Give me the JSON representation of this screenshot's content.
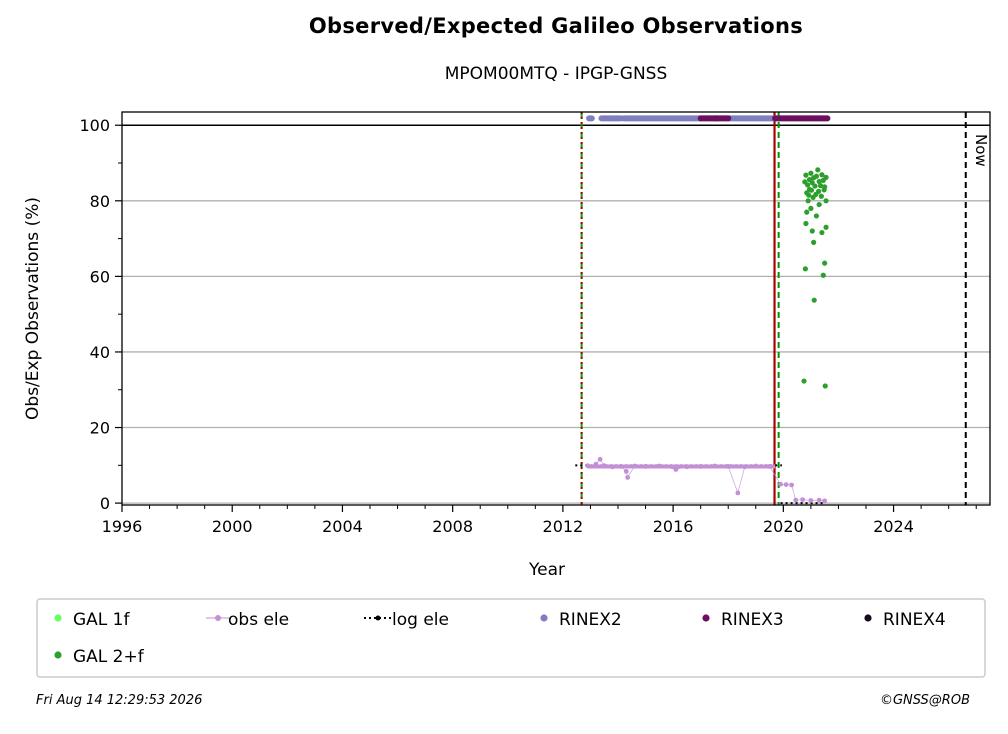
{
  "chart_data": {
    "type": "scatter",
    "title": "Observed/Expected Galileo Observations",
    "subtitle": "MPOM00MTQ - IPGP-GNSS",
    "xlabel": "Year",
    "ylabel": "Obs/Exp Observations (%)",
    "xlim": [
      1996,
      2027.5
    ],
    "ylim": [
      -0.5,
      103.5
    ],
    "xticks": [
      1996,
      2000,
      2004,
      2008,
      2012,
      2016,
      2020,
      2024
    ],
    "yticks": [
      0,
      20,
      40,
      60,
      80,
      100
    ],
    "grid": "y",
    "legend_location": "bottom",
    "vlines": [
      {
        "x": 2012.68,
        "color": "#00aa00",
        "style": "dashed"
      },
      {
        "x": 2012.68,
        "color": "#aa0000",
        "style": "dotted"
      },
      {
        "x": 2019.68,
        "color": "#aa0000",
        "style": "solid"
      },
      {
        "x": 2019.83,
        "color": "#009900",
        "style": "dashed"
      },
      {
        "x": 2026.62,
        "color": "#000000",
        "style": "dashed",
        "label": "Now"
      }
    ],
    "hline": 100,
    "series": [
      {
        "name": "GAL 1f",
        "color": "#66ff66",
        "points": []
      },
      {
        "name": "obs ele",
        "color": "#c38fd6",
        "points": [
          [
            2012.9,
            9.9
          ],
          [
            2013.2,
            10.3
          ],
          [
            2013.35,
            11.6
          ],
          [
            2013.5,
            9.9
          ],
          [
            2013.8,
            9.6
          ],
          [
            2014.1,
            9.7
          ],
          [
            2014.3,
            8.4
          ],
          [
            2014.35,
            6.8
          ],
          [
            2014.6,
            9.8
          ],
          [
            2015.0,
            9.7
          ],
          [
            2015.5,
            9.8
          ],
          [
            2016.1,
            8.9
          ],
          [
            2016.5,
            9.6
          ],
          [
            2017.0,
            9.7
          ],
          [
            2017.5,
            9.8
          ],
          [
            2018.0,
            9.7
          ],
          [
            2018.35,
            2.7
          ],
          [
            2018.6,
            9.6
          ],
          [
            2019.0,
            9.8
          ],
          [
            2019.5,
            9.7
          ],
          [
            2019.9,
            5.0
          ],
          [
            2020.1,
            4.9
          ],
          [
            2020.3,
            4.8
          ],
          [
            2020.45,
            0.8
          ],
          [
            2020.7,
            0.9
          ],
          [
            2021.0,
            0.7
          ],
          [
            2021.3,
            0.8
          ],
          [
            2021.5,
            0.6
          ]
        ]
      },
      {
        "name": "log ele",
        "color": "#000000",
        "segments": [
          [
            [
              2012.45,
              10
            ],
            [
              2019.95,
              10
            ]
          ],
          [
            [
              2019.9,
              0
            ],
            [
              2021.5,
              0
            ]
          ]
        ]
      },
      {
        "name": "RINEX2",
        "color": "#7f7fbf",
        "ranges": [
          [
            2012.95,
            2013.05
          ],
          [
            2013.4,
            2014.1
          ],
          [
            2014.2,
            2017.0
          ],
          [
            2017.5,
            2017.6
          ],
          [
            2018.0,
            2019.7
          ]
        ]
      },
      {
        "name": "RINEX3",
        "color": "#6b0f5e",
        "ranges": [
          [
            2017.0,
            2018.0
          ],
          [
            2019.7,
            2021.6
          ]
        ]
      },
      {
        "name": "RINEX4",
        "color": "#1a0a1e",
        "ranges": []
      },
      {
        "name": "GAL 2+f",
        "color": "#2ca02c",
        "points": [
          [
            2020.75,
            32.3
          ],
          [
            2020.8,
            62.0
          ],
          [
            2020.82,
            74.0
          ],
          [
            2020.85,
            77.0
          ],
          [
            2020.9,
            80.0
          ],
          [
            2020.95,
            83.0
          ],
          [
            2021.0,
            78.0
          ],
          [
            2021.05,
            72.0
          ],
          [
            2021.1,
            69.0
          ],
          [
            2021.12,
            53.7
          ],
          [
            2021.2,
            76.0
          ],
          [
            2021.3,
            79.0
          ],
          [
            2021.4,
            71.6
          ],
          [
            2021.45,
            60.3
          ],
          [
            2021.5,
            63.5
          ],
          [
            2021.52,
            31.0
          ],
          [
            2021.55,
            73.0
          ],
          [
            2021.55,
            80.0
          ],
          [
            2020.78,
            85.0
          ],
          [
            2020.82,
            86.8
          ],
          [
            2020.88,
            84.2
          ],
          [
            2020.95,
            85.6
          ],
          [
            2021.0,
            87.3
          ],
          [
            2021.05,
            84.8
          ],
          [
            2021.1,
            86.1
          ],
          [
            2021.15,
            83.9
          ],
          [
            2021.2,
            86.5
          ],
          [
            2021.25,
            88.2
          ],
          [
            2021.3,
            85.1
          ],
          [
            2021.35,
            84.0
          ],
          [
            2021.4,
            86.9
          ],
          [
            2021.45,
            85.4
          ],
          [
            2021.5,
            83.7
          ],
          [
            2021.55,
            86.2
          ],
          [
            2020.85,
            82.1
          ],
          [
            2020.92,
            81.5
          ],
          [
            2021.02,
            82.8
          ],
          [
            2021.08,
            80.9
          ],
          [
            2021.18,
            81.7
          ],
          [
            2021.28,
            82.5
          ],
          [
            2021.38,
            81.2
          ],
          [
            2021.48,
            82.9
          ]
        ]
      }
    ],
    "legend": [
      "GAL 1f",
      "obs ele",
      "log ele",
      "RINEX2",
      "RINEX3",
      "RINEX4",
      "GAL 2+f"
    ],
    "now_label": "Now"
  },
  "footer": {
    "timestamp": "Fri Aug 14 12:29:53 2026",
    "credit": "©GNSS@ROB"
  }
}
